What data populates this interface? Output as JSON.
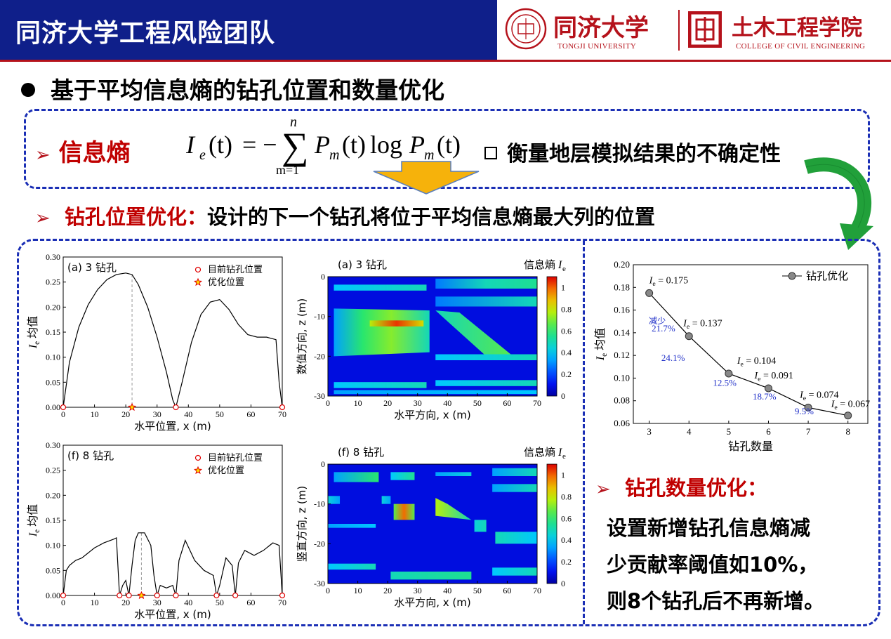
{
  "header": {
    "team_title": "同济大学工程风险团队",
    "logo_tongji_cn": "同济大学",
    "logo_tongji_en": "TONGJI UNIVERSITY",
    "logo_civil_cn": "土木工程学院",
    "logo_civil_en": "COLLEGE OF CIVIL ENGINEERING",
    "colors": {
      "bar": "#0f1f8a",
      "accent": "#b5121b"
    }
  },
  "main_heading": "基于平均信息熵的钻孔位置和数量优化",
  "entropy": {
    "label": "信息熵",
    "formula_lhs": "I",
    "formula_sub": "e",
    "formula_var": "(t)",
    "formula_eq": "= −",
    "formula_sum_top": "n",
    "formula_sum_bottom": "m=1",
    "formula_p": "P",
    "formula_m": "m",
    "formula_log": "log",
    "measure_text": "衡量地层模拟结果的不确定性"
  },
  "location": {
    "label": "钻孔位置优化：",
    "text": "设计的下一个钻孔将位于平均信息熵最大列的位置"
  },
  "quantity": {
    "label": "钻孔数量优化：",
    "text_line1": "设置新增钻孔信息熵减",
    "text_line2": "少贡献率阈值如10%，",
    "text_line3": "则8个钻孔后不再新增。"
  },
  "chart_data": [
    {
      "type": "line",
      "panel_label": "(a) 3 钻孔",
      "xlabel": "水平位置, x (m)",
      "ylabel": "Ie 均值",
      "xlim": [
        0,
        70
      ],
      "ylim": [
        0,
        0.3
      ],
      "xticks": [
        0,
        10,
        20,
        30,
        40,
        50,
        60,
        70
      ],
      "yticks": [
        "0.00",
        "0.05",
        "0.10",
        "0.15",
        "0.20",
        "0.25",
        "0.30"
      ],
      "legend": [
        "目前钻孔位置",
        "优化位置"
      ],
      "x": [
        0,
        2,
        5,
        8,
        11,
        14,
        17,
        20,
        22,
        24,
        27,
        30,
        33,
        35,
        36,
        38,
        41,
        44,
        47,
        50,
        53,
        56,
        59,
        62,
        65,
        68,
        69,
        70
      ],
      "y": [
        0,
        0.09,
        0.16,
        0.205,
        0.235,
        0.255,
        0.265,
        0.268,
        0.265,
        0.245,
        0.2,
        0.14,
        0.07,
        0.015,
        0,
        0.05,
        0.13,
        0.185,
        0.21,
        0.215,
        0.195,
        0.165,
        0.145,
        0.14,
        0.14,
        0.135,
        0.05,
        0
      ],
      "boreholes": [
        0,
        36,
        70
      ],
      "optimal": 22
    },
    {
      "type": "heatmap",
      "panel_label": "(a) 3 钻孔",
      "xlabel": "水平方向, x (m)",
      "ylabel": "数值方向, z (m)",
      "colorbar_label": "信息熵 Ie",
      "xticks": [
        0,
        10,
        20,
        30,
        40,
        50,
        60,
        70
      ],
      "yticks": [
        0,
        -10,
        -20,
        -30
      ],
      "cticks": [
        "0",
        "0.2",
        "0.4",
        "0.6",
        "0.8",
        "1"
      ]
    },
    {
      "type": "line",
      "panel_label": "(f) 8 钻孔",
      "xlabel": "水平位置, x (m)",
      "ylabel": "Ie 均值",
      "xlim": [
        0,
        70
      ],
      "ylim": [
        0,
        0.3
      ],
      "xticks": [
        0,
        10,
        20,
        30,
        40,
        50,
        60,
        70
      ],
      "yticks": [
        "0.00",
        "0.05",
        "0.10",
        "0.15",
        "0.20",
        "0.25",
        "0.30"
      ],
      "legend": [
        "目前钻孔位置",
        "优化位置"
      ],
      "x": [
        0,
        1,
        2,
        4,
        6,
        8,
        10,
        13,
        16,
        17,
        18,
        19,
        20,
        21,
        22,
        23,
        24,
        26,
        28,
        29,
        30,
        31,
        33,
        35,
        36,
        37,
        39,
        42,
        45,
        48,
        49,
        50,
        52,
        54,
        55,
        56,
        58,
        61,
        64,
        67,
        69,
        70
      ],
      "y": [
        0,
        0.05,
        0.06,
        0.07,
        0.075,
        0.085,
        0.095,
        0.105,
        0.112,
        0.115,
        0,
        0.02,
        0.03,
        0,
        0.06,
        0.11,
        0.125,
        0.125,
        0.1,
        0.04,
        0,
        0.02,
        0.015,
        0.02,
        0,
        0.07,
        0.11,
        0.07,
        0.05,
        0.04,
        0,
        0.02,
        0.075,
        0.06,
        0,
        0.065,
        0.09,
        0.08,
        0.09,
        0.105,
        0.1,
        0
      ],
      "boreholes": [
        0,
        18,
        21,
        30,
        36,
        49,
        55,
        70
      ],
      "optimal": 25
    },
    {
      "type": "heatmap",
      "panel_label": "(f) 8 钻孔",
      "xlabel": "水平方向, x (m)",
      "ylabel": "竖直方向, z (m)",
      "colorbar_label": "信息熵 Ie",
      "xticks": [
        0,
        10,
        20,
        30,
        40,
        50,
        60,
        70
      ],
      "yticks": [
        0,
        -10,
        -20,
        -30
      ],
      "cticks": [
        "0",
        "0.2",
        "0.4",
        "0.6",
        "0.8",
        "1"
      ]
    },
    {
      "type": "line",
      "xlabel": "钻孔数量",
      "ylabel": "Ie 均值",
      "xlim": [
        3,
        8
      ],
      "ylim": [
        0.06,
        0.2
      ],
      "xticks": [
        3,
        4,
        5,
        6,
        7,
        8
      ],
      "yticks": [
        "0.06",
        "0.08",
        "0.10",
        "0.12",
        "0.14",
        "0.16",
        "0.18",
        "0.20"
      ],
      "legend": "钻孔优化",
      "x": [
        3,
        4,
        5,
        6,
        7,
        8
      ],
      "y": [
        0.175,
        0.137,
        0.104,
        0.091,
        0.074,
        0.067
      ],
      "point_labels": [
        "Ie = 0.175",
        "Ie = 0.137",
        "Ie = 0.104",
        "Ie = 0.091",
        "Ie = 0.074",
        "Ie = 0.067"
      ],
      "reduction_prefix": "减少",
      "reductions": [
        "21.7%",
        "24.1%",
        "12.5%",
        "18.7%",
        "9.5%"
      ]
    }
  ]
}
